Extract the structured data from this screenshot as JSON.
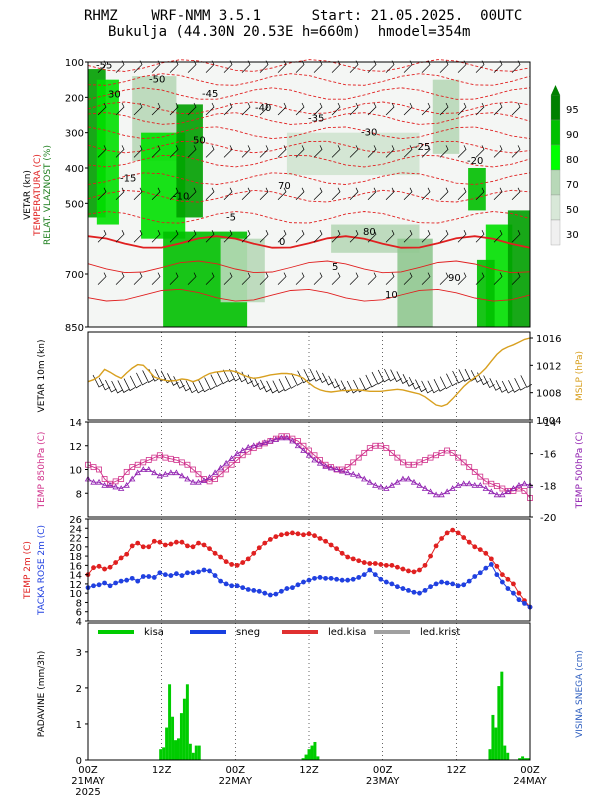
{
  "header": {
    "line1": "RHMZ    WRF-NMM 3.5.1      Start: 21.05.2025.  00UTC",
    "line2": "Bukulja (44.30N 20.53E h=660m)  hmodel=354m"
  },
  "colors": {
    "humidity_dark": "#00a000",
    "humidity_bright": "#00e000",
    "temperature": "#e02020",
    "mslp": "#d8a020",
    "temp850": "#d0308a",
    "temp500": "#9020b0",
    "dewpoint": "#2040e0",
    "rain": "#00cc00",
    "snow_depth_label": "#3060c0"
  },
  "chart_data": [
    {
      "type": "heatmap",
      "panel": "vertical-cross-section",
      "ylabels": [
        "VETAR (kn)",
        "TEMPERATURA (C)",
        "RELAT. VLAZNOST (%)"
      ],
      "ylabel_colors": [
        "#000000",
        "#e02020",
        "#208020"
      ],
      "yticks": [
        "100",
        "200",
        "300",
        "400",
        "500",
        "700",
        "850"
      ],
      "ylim": [
        100,
        850
      ],
      "colorbar_ticks": [
        "95",
        "90",
        "80",
        "70",
        "50",
        "30"
      ],
      "colorbar_colors": [
        "#008000",
        "#00c000",
        "#00ff00",
        "#b8d8b8",
        "#d8e8d8",
        "#f0f0f0"
      ],
      "temperature_labels": [
        "-55",
        "-50",
        "-45",
        "-40",
        "-35",
        "-30",
        "-25",
        "-20",
        "-15",
        "-10",
        "-5",
        "0",
        "5",
        "10"
      ],
      "humidity_labels": [
        "30",
        "50",
        "70",
        "80",
        "90"
      ]
    },
    {
      "type": "line",
      "panel": "wind-10m-mslp",
      "ylabel_left": "VETAR 10m (kn)",
      "ylabel_right": "MSLP (hPa)",
      "right_ticks": [
        "1016",
        "1012",
        "1008",
        "1004"
      ],
      "ylim": [
        1004,
        1016
      ],
      "mslp": [
        1009.6,
        1009.9,
        1010.4,
        1011.4,
        1011.0,
        1010.5,
        1010.1,
        1010.9,
        1011.6,
        1012.1,
        1012.0,
        1011.2,
        1010.3,
        1010.0,
        1009.8,
        1009.7,
        1009.8,
        1010.0,
        1009.9,
        1009.6,
        1009.9,
        1010.4,
        1010.8,
        1011.0,
        1011.1,
        1011.2,
        1011.2,
        1011.0,
        1010.6,
        1010.3,
        1010.1,
        1010.2,
        1010.4,
        1010.6,
        1010.7,
        1010.8,
        1010.8,
        1010.7,
        1010.5,
        1010.1,
        1009.4,
        1008.8,
        1008.4,
        1008.2,
        1008.1,
        1008.2,
        1008.3,
        1008.3,
        1008.4,
        1008.4,
        1008.3,
        1008.2,
        1008.2,
        1008.2,
        1008.3,
        1008.4,
        1008.5,
        1008.4,
        1008.2,
        1008.0,
        1007.8,
        1007.4,
        1006.8,
        1006.2,
        1006.0,
        1006.3,
        1007.1,
        1008.0,
        1008.9,
        1009.6,
        1010.2,
        1010.8,
        1011.6,
        1012.6,
        1013.6,
        1014.3,
        1014.7,
        1015.0,
        1015.4,
        1015.8,
        1016.0
      ]
    },
    {
      "type": "line",
      "panel": "temp-850-500",
      "ylabel_left": "TEMP 850hPa (C)",
      "ylabel_right": "TEMP 500hPa (C)",
      "left_ticks": [
        "14",
        "12",
        "10",
        "8"
      ],
      "right_ticks": [
        "-14",
        "-16",
        "-18",
        "-20"
      ],
      "ylim_left": [
        6,
        14
      ],
      "ylim_right": [
        -20,
        -14
      ],
      "series": [
        {
          "values": [
            10.4,
            10.2,
            10.0,
            9.2,
            8.8,
            9.0,
            9.2,
            9.8,
            10.2,
            10.4,
            10.6,
            10.8,
            11.0,
            11.2,
            11.0,
            10.9,
            10.8,
            10.6,
            10.4,
            10.0,
            9.6,
            9.2,
            9.0,
            9.2,
            9.6,
            10.0,
            10.4,
            10.8,
            11.2,
            11.5,
            11.8,
            12.0,
            12.2,
            12.4,
            12.6,
            12.8,
            12.8,
            12.6,
            12.4,
            12.0,
            11.6,
            11.2,
            10.8,
            10.4,
            10.2,
            10.0,
            10.0,
            10.2,
            10.6,
            11.0,
            11.4,
            11.8,
            12.0,
            12.0,
            11.8,
            11.4,
            11.0,
            10.6,
            10.4,
            10.4,
            10.6,
            10.8,
            11.0,
            11.2,
            11.4,
            11.6,
            11.4,
            11.0,
            10.6,
            10.2,
            9.8,
            9.4,
            9.0,
            8.8,
            8.6,
            8.4,
            8.2,
            8.2,
            8.4,
            8.2,
            7.6
          ]
        },
        {
          "values": [
            -17.6,
            -17.8,
            -17.8,
            -18.0,
            -18.0,
            -18.1,
            -18.2,
            -18.0,
            -17.6,
            -17.2,
            -17.0,
            -17.0,
            -17.2,
            -17.4,
            -17.3,
            -17.2,
            -17.2,
            -17.4,
            -17.6,
            -17.8,
            -17.8,
            -17.7,
            -17.5,
            -17.2,
            -16.9,
            -16.6,
            -16.3,
            -16.0,
            -15.8,
            -15.6,
            -15.5,
            -15.4,
            -15.3,
            -15.2,
            -15.1,
            -15.0,
            -15.0,
            -15.2,
            -15.5,
            -15.8,
            -16.1,
            -16.4,
            -16.6,
            -16.8,
            -16.9,
            -17.0,
            -17.1,
            -17.2,
            -17.3,
            -17.4,
            -17.6,
            -17.8,
            -18.0,
            -18.1,
            -18.2,
            -18.0,
            -17.8,
            -17.6,
            -17.6,
            -17.8,
            -18.0,
            -18.2,
            -18.4,
            -18.6,
            -18.6,
            -18.4,
            -18.2,
            -18.0,
            -17.9,
            -17.9,
            -18.0,
            -18.0,
            -18.2,
            -18.4,
            -18.6,
            -18.6,
            -18.4,
            -18.2,
            -18.0,
            -17.9,
            -18.0
          ]
        }
      ]
    },
    {
      "type": "line",
      "panel": "temp-2m",
      "ylabels": [
        "TEMP 2m (C)",
        "TACKA ROSE 2m (C)"
      ],
      "ylabel_colors": [
        "#e02020",
        "#2040e0"
      ],
      "left_ticks": [
        "26",
        "24",
        "22",
        "20",
        "18",
        "16",
        "14",
        "12",
        "10",
        "8",
        "6",
        "4"
      ],
      "ylim": [
        4,
        26
      ],
      "series": [
        {
          "values": [
            14.0,
            15.5,
            15.8,
            15.2,
            15.6,
            16.6,
            17.6,
            18.4,
            20.2,
            20.8,
            20.0,
            20.0,
            21.2,
            21.0,
            20.4,
            20.6,
            21.0,
            21.0,
            20.2,
            20.0,
            20.8,
            20.4,
            19.6,
            18.6,
            17.8,
            16.8,
            16.2,
            16.0,
            16.6,
            17.4,
            18.6,
            19.8,
            20.8,
            21.6,
            22.2,
            22.6,
            22.8,
            23.0,
            22.8,
            22.6,
            22.8,
            22.4,
            21.8,
            21.2,
            20.4,
            19.6,
            18.6,
            17.8,
            17.4,
            17.0,
            16.6,
            16.4,
            16.4,
            16.2,
            16.0,
            16.0,
            15.6,
            15.2,
            14.8,
            14.6,
            15.0,
            16.0,
            18.0,
            20.2,
            21.8,
            23.0,
            23.6,
            23.0,
            22.0,
            21.0,
            20.0,
            19.4,
            18.6,
            17.4,
            15.8,
            14.0,
            13.0,
            12.0,
            10.0,
            8.4,
            7.0
          ]
        },
        {
          "values": [
            11.2,
            11.6,
            11.8,
            12.2,
            11.6,
            12.2,
            12.6,
            12.8,
            13.2,
            12.6,
            13.6,
            13.6,
            13.4,
            14.4,
            14.0,
            13.8,
            14.2,
            13.8,
            14.4,
            14.4,
            14.6,
            15.0,
            14.8,
            13.8,
            12.6,
            12.0,
            11.6,
            11.6,
            11.2,
            10.8,
            10.6,
            10.4,
            10.0,
            9.6,
            9.8,
            10.4,
            11.0,
            11.2,
            11.8,
            12.4,
            12.8,
            13.2,
            13.4,
            13.2,
            13.2,
            13.0,
            12.8,
            12.8,
            13.0,
            13.4,
            14.0,
            15.0,
            14.0,
            13.0,
            12.4,
            12.0,
            11.4,
            11.0,
            10.6,
            10.2,
            10.0,
            10.6,
            11.4,
            12.0,
            12.4,
            12.2,
            12.0,
            11.6,
            11.8,
            12.6,
            13.6,
            14.4,
            15.4,
            16.2,
            14.0,
            12.4,
            11.0,
            10.0,
            8.6,
            7.8,
            7.0
          ]
        }
      ]
    },
    {
      "type": "bar",
      "panel": "precipitation",
      "ylabel_left": "PADAVINE (mm/3h)",
      "ylabel_right": "VISINA SNEGA (cm)",
      "left_ticks": [
        "3",
        "2",
        "1",
        "0"
      ],
      "ylim": [
        0,
        3.8
      ],
      "legend": [
        {
          "label": "kisa",
          "color": "#00cc00"
        },
        {
          "label": "sneg",
          "color": "#1840e0"
        },
        {
          "label": "led.kisa",
          "color": "#e03030"
        },
        {
          "label": "led.krist",
          "color": "#a0a0a0"
        }
      ],
      "rain": [
        0,
        0,
        0,
        0,
        0,
        0,
        0,
        0,
        0,
        0,
        0,
        0,
        0,
        0,
        0,
        0,
        0,
        0,
        0,
        0,
        0,
        0,
        0,
        0,
        0.3,
        0.35,
        0.9,
        2.1,
        1.2,
        0.55,
        0.6,
        1.3,
        1.7,
        2.1,
        0.45,
        0.2,
        0.4,
        0.4,
        0,
        0,
        0,
        0,
        0,
        0,
        0,
        0,
        0,
        0,
        0,
        0,
        0,
        0,
        0,
        0,
        0,
        0,
        0,
        0,
        0,
        0,
        0,
        0,
        0,
        0,
        0,
        0,
        0,
        0,
        0,
        0,
        0,
        0,
        0.05,
        0.15,
        0.3,
        0.4,
        0.5,
        0.1,
        0,
        0,
        0,
        0,
        0,
        0,
        0,
        0,
        0,
        0,
        0,
        0,
        0,
        0,
        0,
        0,
        0,
        0,
        0,
        0,
        0,
        0,
        0,
        0,
        0,
        0,
        0,
        0,
        0,
        0,
        0,
        0,
        0,
        0,
        0,
        0,
        0,
        0,
        0,
        0,
        0,
        0,
        0,
        0,
        0,
        0,
        0,
        0,
        0,
        0,
        0,
        0,
        0,
        0,
        0,
        0,
        0,
        0.3,
        1.25,
        0.9,
        2.05,
        2.45,
        0.4,
        0.2,
        0,
        0,
        0,
        0.05,
        0.1,
        0.05,
        0.05
      ],
      "xtick_labels": [
        "00Z",
        "12Z",
        "00Z",
        "12Z",
        "00Z",
        "12Z",
        "00Z"
      ],
      "xtick_sublabels": [
        "21MAY",
        "",
        "22MAY",
        "",
        "23MAY",
        "",
        "24MAY"
      ],
      "year_label": "2025"
    }
  ]
}
